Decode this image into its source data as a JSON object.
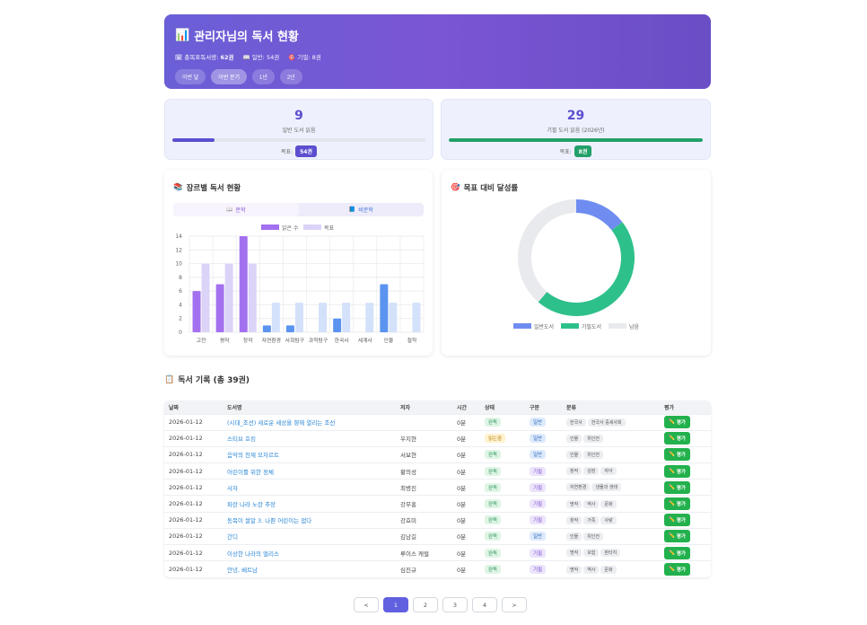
{
  "hero": {
    "title": "관리자님의 독서 현황",
    "title_icon": "📊",
    "stats": [
      {
        "icon": "🗓",
        "label": "총목표독서량:",
        "value": "62권"
      },
      {
        "icon": "📖",
        "label": "일반:",
        "value": "54권"
      },
      {
        "icon": "🎯",
        "label": "기필:",
        "value": "8권"
      }
    ],
    "periods": [
      "이번 달",
      "이번 분기",
      "1년",
      "2년"
    ],
    "active_period": 1
  },
  "goals": [
    {
      "count": "9",
      "label": "일반 도서 읽음",
      "goal_label": "목표:",
      "goal_value": "54권",
      "progress": 0.167,
      "color": "#5b4fcf"
    },
    {
      "count": "29",
      "label": "기필 도서 읽음 (2026년)",
      "goal_label": "목표:",
      "goal_value": "8권",
      "progress": 1.0,
      "color": "#23a06a"
    }
  ],
  "genre_panel": {
    "title": "장르별 독서 현황",
    "icon": "📚",
    "tabs": [
      {
        "icon": "📖",
        "label": "문학"
      },
      {
        "icon": "📘",
        "label": "비문학"
      }
    ]
  },
  "goal_panel": {
    "title": "목표 대비 달성률",
    "icon": "🎯"
  },
  "chart_data": [
    {
      "type": "bar",
      "categories": [
        "고전",
        "평작",
        "창작",
        "자연환경",
        "사회탐구",
        "과학탐구",
        "한국사",
        "세계사",
        "인물",
        "철학"
      ],
      "series": [
        {
          "name": "읽은 수",
          "values": [
            6,
            7,
            14,
            1,
            1,
            0,
            2,
            0,
            7,
            0
          ],
          "colors": [
            "#a371f0",
            "#a371f0",
            "#a371f0",
            "#5b93f0",
            "#5b93f0",
            "#5b93f0",
            "#5b93f0",
            "#5b93f0",
            "#5b93f0",
            "#5b93f0"
          ]
        },
        {
          "name": "목표",
          "values": [
            10,
            10,
            10,
            4.3,
            4.3,
            4.3,
            4.3,
            4.3,
            4.3,
            4.3
          ],
          "colors": [
            "#dcd3f8",
            "#dcd3f8",
            "#dcd3f8",
            "#d3e1fa",
            "#d3e1fa",
            "#d3e1fa",
            "#d3e1fa",
            "#d3e1fa",
            "#d3e1fa",
            "#d3e1fa"
          ]
        }
      ],
      "yticks": [
        0,
        2,
        4,
        6,
        8,
        10,
        12,
        14
      ],
      "ylim": [
        0,
        14
      ],
      "legend": "top",
      "grid": true
    },
    {
      "type": "pie",
      "categories": [
        "일반도서",
        "기필도서",
        "남음"
      ],
      "values": [
        9,
        29,
        24
      ],
      "colors": [
        "#6f8df0",
        "#2ec08b",
        "#e9eaed"
      ],
      "legend": "bottom"
    }
  ],
  "records": {
    "title": "독서 기록 (총 39권)",
    "icon": "📋",
    "columns": [
      "날짜",
      "도서명",
      "저자",
      "시간",
      "상태",
      "구분",
      "분류",
      "평가"
    ],
    "rate_label": "평가",
    "rows": [
      {
        "date": "2026-01-12",
        "title": "(시대_조선) 새로운 세상을 향해 열리는 조선",
        "author": "",
        "time": "0분",
        "status": "완독",
        "type": "일반",
        "cats": [
          "한국사",
          "한국사 중세사회"
        ]
      },
      {
        "date": "2026-01-12",
        "title": "스티브 호킹",
        "author": "우지현",
        "time": "0분",
        "status": "읽는중",
        "type": "일반",
        "cats": [
          "인물",
          "위인전"
        ]
      },
      {
        "date": "2026-01-12",
        "title": "음악의 천재 모차르트",
        "author": "서보현",
        "time": "0분",
        "status": "완독",
        "type": "일반",
        "cats": [
          "인물",
          "위인전"
        ]
      },
      {
        "date": "2026-01-12",
        "title": "어린이를 위한 정체",
        "author": "황의성",
        "time": "0분",
        "status": "완독",
        "type": "기필",
        "cats": [
          "창작",
          "성장",
          "자아"
        ]
      },
      {
        "date": "2026-01-12",
        "title": "사자",
        "author": "최병진",
        "time": "0분",
        "status": "완독",
        "type": "기필",
        "cats": [
          "자연환경",
          "생물과 생태"
        ]
      },
      {
        "date": "2026-01-12",
        "title": "파란 나라 노란 추장",
        "author": "강무홍",
        "time": "0분",
        "status": "완독",
        "type": "기필",
        "cats": [
          "명작",
          "역사",
          "문화"
        ]
      },
      {
        "date": "2026-01-12",
        "title": "동복이 쌀알 3. 나쁜 어린이는 없다",
        "author": "강효미",
        "time": "0분",
        "status": "완독",
        "type": "기필",
        "cats": [
          "창작",
          "가족",
          "사랑"
        ]
      },
      {
        "date": "2026-01-12",
        "title": "간디",
        "author": "김남길",
        "time": "0분",
        "status": "완독",
        "type": "일반",
        "cats": [
          "인물",
          "위인전"
        ]
      },
      {
        "date": "2026-01-12",
        "title": "이상한 나라의 앨리스",
        "author": "루이스 캐럴",
        "time": "0분",
        "status": "완독",
        "type": "기필",
        "cats": [
          "명작",
          "모험",
          "판타지"
        ]
      },
      {
        "date": "2026-01-12",
        "title": "안녕, 베트남",
        "author": "심진규",
        "time": "0분",
        "status": "완독",
        "type": "기필",
        "cats": [
          "명작",
          "역사",
          "문화"
        ]
      }
    ]
  },
  "pagination": {
    "prev": "<",
    "pages": [
      "1",
      "2",
      "3",
      "4"
    ],
    "active": 0,
    "next": ">"
  }
}
